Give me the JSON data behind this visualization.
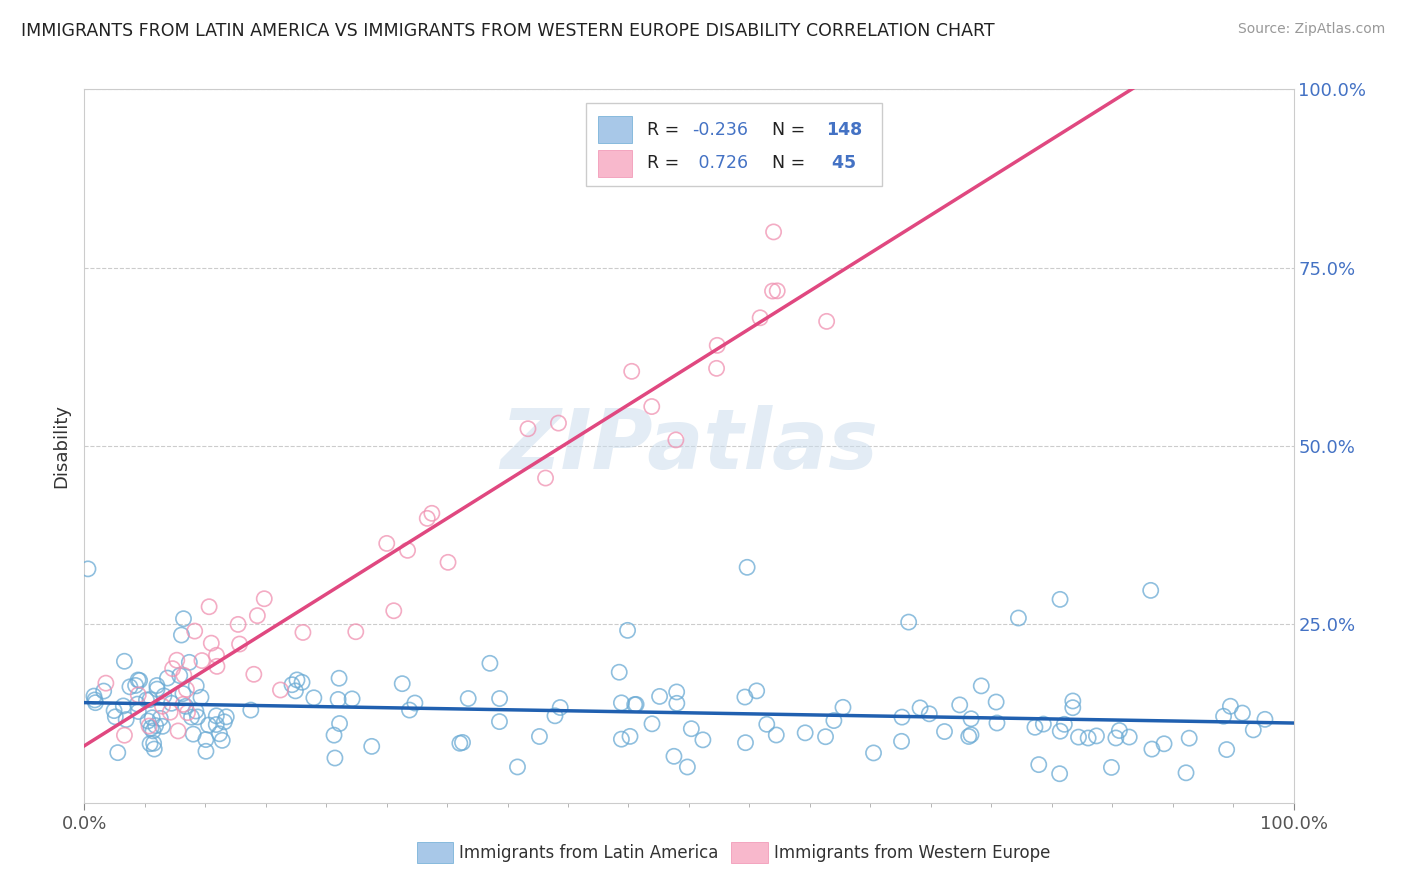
{
  "title": "IMMIGRANTS FROM LATIN AMERICA VS IMMIGRANTS FROM WESTERN EUROPE DISABILITY CORRELATION CHART",
  "source": "Source: ZipAtlas.com",
  "ylabel": "Disability",
  "r_latin": -0.236,
  "n_latin": 148,
  "r_europe": 0.726,
  "n_europe": 45,
  "color_latin_fill": "#a8c8e8",
  "color_latin_edge": "#6aaad4",
  "color_europe_fill": "#f8b8cc",
  "color_europe_edge": "#f090b0",
  "color_line_latin": "#2060b0",
  "color_line_europe": "#e04880",
  "color_text_blue": "#4472c4",
  "watermark": "ZIPatlas",
  "ylim": [
    0,
    1
  ],
  "xlim": [
    0,
    1
  ],
  "legend_latin": "Immigrants from Latin America",
  "legend_europe": "Immigrants from Western Europe"
}
